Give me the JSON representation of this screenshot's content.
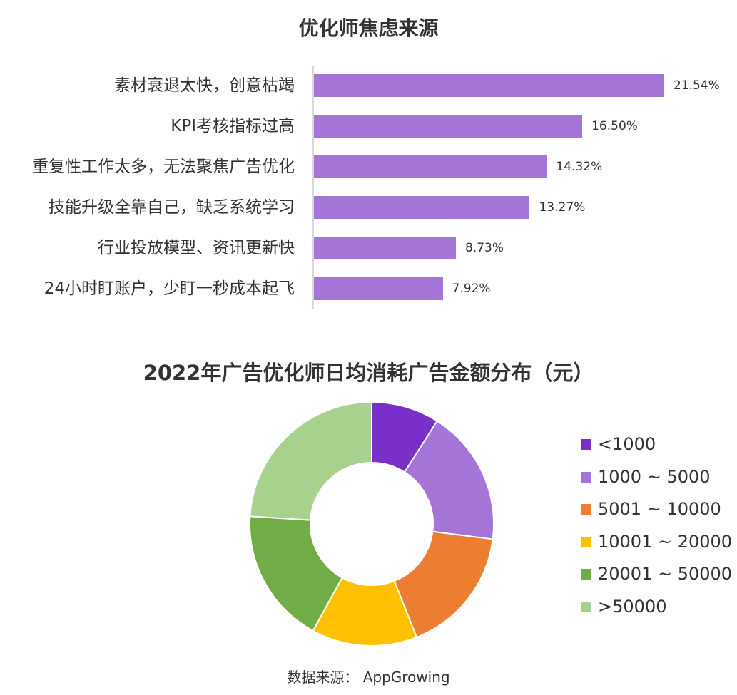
{
  "chart_data": [
    {
      "type": "bar",
      "orientation": "horizontal",
      "title": "优化师焦虑来源",
      "categories": [
        "素材衰退太快，创意枯竭",
        "KPI考核指标过高",
        "重复性工作太多，无法聚焦广告优化",
        "技能升级全靠自己，缺乏系统学习",
        "行业投放模型、资讯更新快",
        "24小时盯账户，少盯一秒成本起飞"
      ],
      "values": [
        21.54,
        16.5,
        14.32,
        13.27,
        8.73,
        7.92
      ],
      "value_labels": [
        "21.54%",
        "16.50%",
        "14.32%",
        "13.27%",
        "8.73%",
        "7.92%"
      ],
      "color": "#a475d6",
      "grid": false
    },
    {
      "type": "pie",
      "variant": "donut",
      "title": "2022年广告优化师日均消耗广告金额分布（元）",
      "categories": [
        "<1000",
        "1000 ~ 5000",
        "5001 ~ 10000",
        "10001 ~ 20000",
        "20001 ~ 50000",
        ">50000"
      ],
      "values": [
        9,
        18,
        17,
        14,
        18,
        24
      ],
      "colors": [
        "#7b2fc9",
        "#a475d6",
        "#ed7d31",
        "#ffc000",
        "#70ad47",
        "#a9d18e"
      ],
      "legend_position": "right"
    }
  ],
  "source": {
    "label": "数据来源：",
    "value": "AppGrowing"
  }
}
